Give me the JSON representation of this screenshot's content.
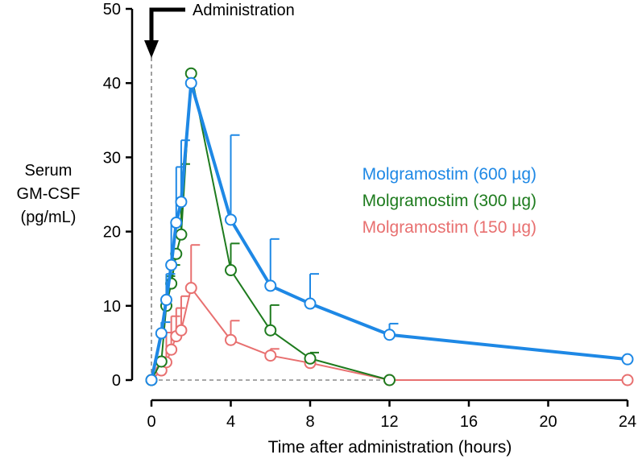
{
  "chart_data": {
    "type": "line",
    "title": "",
    "xlabel": "Time after administration (hours)",
    "ylabel": [
      "Serum",
      "GM-CSF",
      "(pg/mL)"
    ],
    "xlim": [
      0,
      24
    ],
    "ylim": [
      0,
      50
    ],
    "xticks": [
      0,
      4,
      8,
      12,
      16,
      20,
      24
    ],
    "yticks": [
      0,
      10,
      20,
      30,
      40,
      50
    ],
    "grid": false,
    "legend_position": "middle-right",
    "annotation": "Administration",
    "reference_lines": [
      {
        "axis": "x",
        "value": 0
      },
      {
        "axis": "y",
        "value": 0
      }
    ],
    "series": [
      {
        "name": "Molgramostim (600 µg)",
        "color": "#1E88E5",
        "x": [
          0,
          0.5,
          0.75,
          1,
          1.25,
          1.5,
          2,
          4,
          6,
          8,
          12,
          24
        ],
        "y": [
          0,
          6.3,
          10.8,
          15.5,
          21.2,
          24.0,
          40.0,
          21.6,
          12.7,
          10.3,
          6.1,
          2.8
        ],
        "err": [
          0,
          1.5,
          3.5,
          5.5,
          7.5,
          8.3,
          0,
          11.4,
          6.3,
          4.0,
          1.5,
          0
        ]
      },
      {
        "name": "Molgramostim (300 µg)",
        "color": "#1E7B1E",
        "x": [
          0,
          0.5,
          0.75,
          1,
          1.25,
          1.5,
          2,
          4,
          6,
          8,
          12
        ],
        "y": [
          0,
          2.5,
          10.0,
          13.0,
          17.0,
          19.6,
          41.3,
          14.8,
          6.7,
          2.9,
          0
        ],
        "err": [
          0,
          0,
          4.0,
          2.5,
          0,
          9.5,
          0,
          3.6,
          3.4,
          0.8,
          0
        ]
      },
      {
        "name": "Molgramostim (150 µg)",
        "color": "#E87070",
        "x": [
          0,
          0.5,
          0.75,
          1,
          1.25,
          1.5,
          2,
          4,
          6,
          8,
          12,
          24
        ],
        "y": [
          0,
          1.3,
          2.4,
          4.1,
          5.9,
          6.7,
          12.4,
          5.4,
          3.3,
          2.3,
          0,
          0
        ],
        "err": [
          0,
          0,
          4.0,
          4.5,
          3.8,
          4.6,
          5.8,
          2.6,
          0.9,
          0,
          0,
          0
        ]
      }
    ]
  }
}
